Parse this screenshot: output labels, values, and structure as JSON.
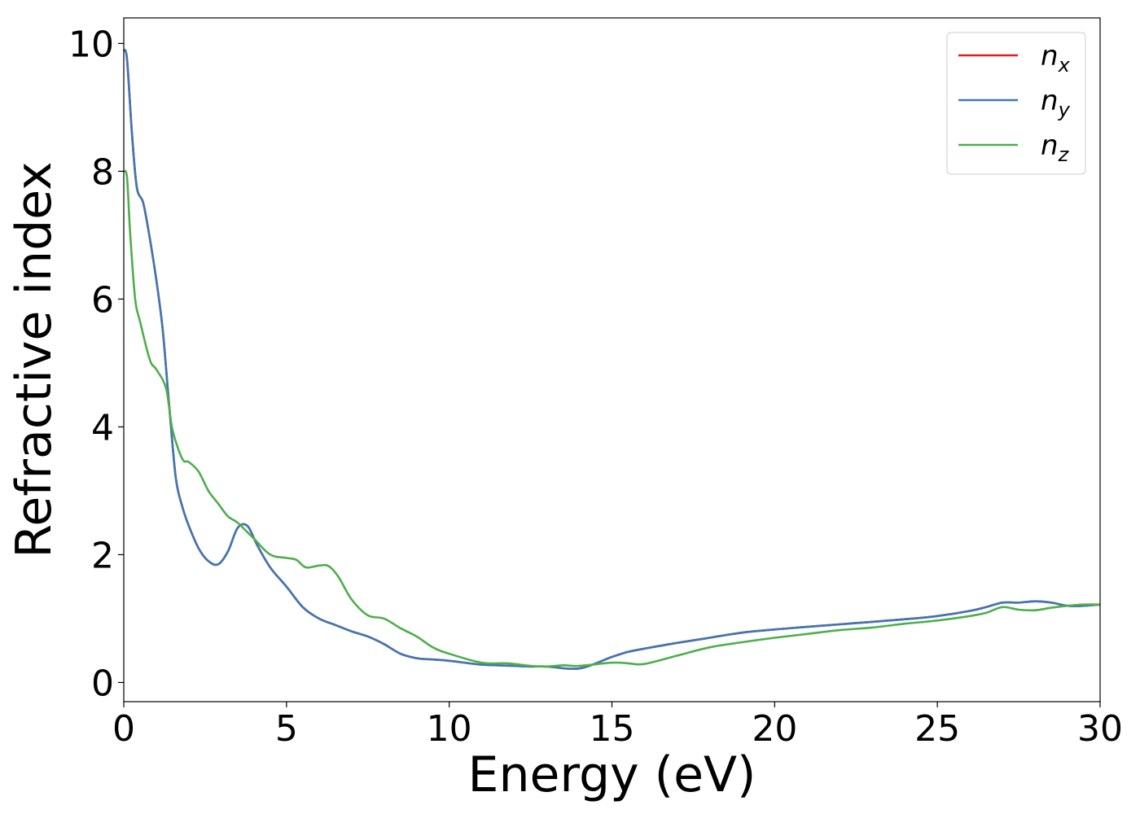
{
  "chart_data": {
    "type": "line",
    "title": "",
    "xlabel": "Energy (eV)",
    "ylabel": "Refractive index",
    "xlim": [
      0,
      30
    ],
    "ylim": [
      -0.3,
      10.4
    ],
    "xticks": [
      0,
      5,
      10,
      15,
      20,
      25,
      30
    ],
    "yticks": [
      0,
      2,
      4,
      6,
      8,
      10
    ],
    "xtick_labels": [
      "0",
      "5",
      "10",
      "15",
      "20",
      "25",
      "30"
    ],
    "ytick_labels": [
      "0",
      "2",
      "4",
      "6",
      "8",
      "10"
    ],
    "grid": false,
    "legend_position": "top-right",
    "series": [
      {
        "name": "n_x",
        "legend_base": "n",
        "legend_sub": "x",
        "color": "#e41a1c",
        "x": [
          0,
          0.1,
          0.25,
          0.4,
          0.6,
          0.8,
          1.0,
          1.2,
          1.4,
          1.6,
          1.8,
          2.0,
          2.3,
          2.6,
          2.9,
          3.2,
          3.5,
          3.8,
          4.1,
          4.5,
          5.0,
          5.5,
          6.0,
          6.5,
          7.0,
          7.5,
          8.0,
          8.5,
          9.0,
          9.5,
          10.0,
          11.0,
          12.0,
          12.5,
          13.0,
          14.0,
          15.0,
          15.5,
          16.0,
          17.0,
          18.0,
          19.0,
          20.0,
          21.0,
          22.0,
          23.0,
          24.0,
          25.0,
          26.0,
          26.5,
          27.0,
          27.5,
          28.0,
          28.5,
          29.0,
          29.5,
          30.0
        ],
        "y": [
          9.9,
          9.75,
          8.6,
          7.75,
          7.5,
          6.95,
          6.3,
          5.5,
          4.3,
          3.2,
          2.75,
          2.45,
          2.1,
          1.9,
          1.85,
          2.05,
          2.42,
          2.45,
          2.15,
          1.8,
          1.5,
          1.18,
          1.0,
          0.9,
          0.8,
          0.72,
          0.6,
          0.45,
          0.38,
          0.36,
          0.34,
          0.28,
          0.26,
          0.25,
          0.25,
          0.22,
          0.4,
          0.48,
          0.53,
          0.62,
          0.7,
          0.78,
          0.83,
          0.87,
          0.91,
          0.95,
          0.99,
          1.04,
          1.12,
          1.18,
          1.25,
          1.25,
          1.27,
          1.25,
          1.2,
          1.2,
          1.22
        ]
      },
      {
        "name": "n_y",
        "legend_base": "n",
        "legend_sub": "y",
        "color": "#3e77b4",
        "x": [
          0,
          0.1,
          0.25,
          0.4,
          0.6,
          0.8,
          1.0,
          1.2,
          1.4,
          1.6,
          1.8,
          2.0,
          2.3,
          2.6,
          2.9,
          3.2,
          3.5,
          3.8,
          4.1,
          4.5,
          5.0,
          5.5,
          6.0,
          6.5,
          7.0,
          7.5,
          8.0,
          8.5,
          9.0,
          9.5,
          10.0,
          11.0,
          12.0,
          12.5,
          13.0,
          14.0,
          15.0,
          15.5,
          16.0,
          17.0,
          18.0,
          19.0,
          20.0,
          21.0,
          22.0,
          23.0,
          24.0,
          25.0,
          26.0,
          26.5,
          27.0,
          27.5,
          28.0,
          28.5,
          29.0,
          29.5,
          30.0
        ],
        "y": [
          9.9,
          9.75,
          8.6,
          7.75,
          7.5,
          6.95,
          6.3,
          5.5,
          4.3,
          3.2,
          2.75,
          2.45,
          2.1,
          1.9,
          1.85,
          2.05,
          2.42,
          2.45,
          2.15,
          1.8,
          1.5,
          1.18,
          1.0,
          0.9,
          0.8,
          0.72,
          0.6,
          0.45,
          0.38,
          0.36,
          0.34,
          0.28,
          0.26,
          0.25,
          0.25,
          0.22,
          0.4,
          0.48,
          0.53,
          0.62,
          0.7,
          0.78,
          0.83,
          0.87,
          0.91,
          0.95,
          0.99,
          1.04,
          1.12,
          1.18,
          1.25,
          1.25,
          1.27,
          1.25,
          1.2,
          1.2,
          1.22
        ]
      },
      {
        "name": "n_z",
        "legend_base": "n",
        "legend_sub": "z",
        "color": "#4daf4a",
        "x": [
          0,
          0.1,
          0.2,
          0.35,
          0.5,
          0.8,
          1.0,
          1.3,
          1.5,
          1.8,
          2.0,
          2.3,
          2.6,
          2.9,
          3.2,
          3.5,
          4.0,
          4.5,
          5.0,
          5.3,
          5.6,
          6.0,
          6.3,
          6.6,
          7.0,
          7.5,
          8.0,
          8.5,
          9.0,
          9.5,
          10.0,
          11.0,
          11.8,
          12.5,
          13.0,
          13.5,
          14.0,
          15.0,
          15.5,
          16.0,
          17.0,
          18.0,
          19.0,
          20.0,
          21.0,
          22.0,
          23.0,
          24.0,
          25.0,
          26.0,
          26.5,
          27.0,
          27.5,
          28.0,
          28.5,
          29.0,
          29.5,
          30.0
        ],
        "y": [
          8.0,
          7.9,
          7.0,
          6.0,
          5.65,
          5.05,
          4.9,
          4.6,
          3.95,
          3.5,
          3.45,
          3.3,
          3.0,
          2.8,
          2.6,
          2.5,
          2.25,
          2.0,
          1.95,
          1.92,
          1.8,
          1.83,
          1.82,
          1.65,
          1.3,
          1.05,
          1.0,
          0.85,
          0.72,
          0.55,
          0.45,
          0.31,
          0.3,
          0.26,
          0.25,
          0.27,
          0.26,
          0.31,
          0.3,
          0.29,
          0.42,
          0.55,
          0.63,
          0.7,
          0.76,
          0.82,
          0.86,
          0.92,
          0.97,
          1.04,
          1.09,
          1.18,
          1.14,
          1.13,
          1.17,
          1.2,
          1.22,
          1.22
        ]
      }
    ]
  }
}
